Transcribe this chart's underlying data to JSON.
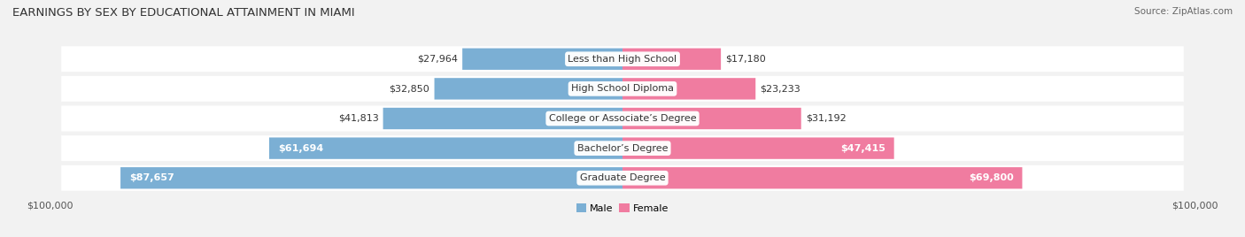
{
  "title": "EARNINGS BY SEX BY EDUCATIONAL ATTAINMENT IN MIAMI",
  "source": "Source: ZipAtlas.com",
  "categories": [
    "Less than High School",
    "High School Diploma",
    "College or Associate’s Degree",
    "Bachelor’s Degree",
    "Graduate Degree"
  ],
  "male_values": [
    27964,
    32850,
    41813,
    61694,
    87657
  ],
  "female_values": [
    17180,
    23233,
    31192,
    47415,
    69800
  ],
  "max_value": 100000,
  "male_color": "#7bafd4",
  "female_color": "#f07ca0",
  "male_label": "Male",
  "female_label": "Female",
  "background_color": "#f2f2f2",
  "row_bg_color": "#e8e8e8",
  "title_fontsize": 9.5,
  "value_fontsize": 8,
  "cat_fontsize": 8
}
